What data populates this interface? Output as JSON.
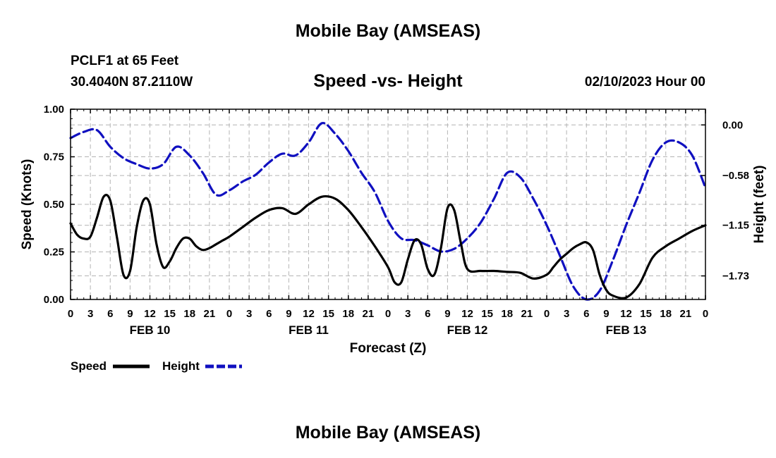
{
  "header": {
    "title": "Mobile Bay (AMSEAS)",
    "station": "PCLF1 at 65 Feet",
    "coords": "30.4040N  87.2110W",
    "datetime": "02/10/2023 Hour 00",
    "footer_title": "Mobile Bay (AMSEAS)"
  },
  "chart_data": {
    "type": "line",
    "title": "Speed -vs- Height",
    "xlabel": "Forecast (Z)",
    "ylabel": "Speed (Knots)",
    "y2label": "Height (feet)",
    "x_range_hours": [
      0,
      96
    ],
    "x_ticks": [
      "0",
      "3",
      "6",
      "9",
      "12",
      "15",
      "18",
      "21",
      "0",
      "3",
      "6",
      "9",
      "12",
      "15",
      "18",
      "21",
      "0",
      "3",
      "6",
      "9",
      "12",
      "15",
      "18",
      "21",
      "0",
      "3",
      "6",
      "9",
      "12",
      "15",
      "18",
      "21",
      "0"
    ],
    "day_labels": [
      {
        "label": "FEB 10",
        "hour": 12
      },
      {
        "label": "FEB 11",
        "hour": 36
      },
      {
        "label": "FEB 12",
        "hour": 60
      },
      {
        "label": "FEB 13",
        "hour": 84
      }
    ],
    "ylim": [
      0,
      1
    ],
    "y_ticks": [
      "0.00",
      "0.25",
      "0.50",
      "0.75",
      "1.00"
    ],
    "y2lim": [
      -2.0,
      0.18
    ],
    "y2_ticks": [
      {
        "label": "0.00",
        "value": 0.0
      },
      {
        "label": "−0.58",
        "value": -0.58
      },
      {
        "label": "−1.15",
        "value": -1.15
      },
      {
        "label": "−1.73",
        "value": -1.73
      }
    ],
    "colors": {
      "speed": "#000000",
      "height": "#1010c0",
      "grid": "#b4b4b4"
    },
    "series": [
      {
        "name": "Speed",
        "axis": "left",
        "x": [
          0,
          1,
          2,
          3,
          4,
          5,
          6,
          7,
          8,
          9,
          10,
          11,
          12,
          13,
          14,
          15,
          16,
          17,
          18,
          19,
          20,
          21,
          22,
          23,
          24,
          26,
          28,
          30,
          32,
          34,
          36,
          38,
          40,
          42,
          44,
          46,
          48,
          49,
          50,
          51,
          52,
          53,
          54,
          55,
          56,
          57,
          58,
          59,
          60,
          62,
          64,
          66,
          68,
          70,
          72,
          73,
          74,
          75,
          76,
          77,
          78,
          79,
          80,
          81,
          82,
          84,
          86,
          88,
          90,
          92,
          94,
          96
        ],
        "values": [
          0.4,
          0.34,
          0.32,
          0.33,
          0.43,
          0.54,
          0.52,
          0.33,
          0.13,
          0.15,
          0.38,
          0.52,
          0.5,
          0.29,
          0.17,
          0.2,
          0.27,
          0.32,
          0.32,
          0.28,
          0.26,
          0.27,
          0.29,
          0.31,
          0.33,
          0.38,
          0.43,
          0.47,
          0.48,
          0.45,
          0.5,
          0.54,
          0.53,
          0.47,
          0.38,
          0.28,
          0.17,
          0.09,
          0.09,
          0.21,
          0.31,
          0.29,
          0.16,
          0.13,
          0.27,
          0.48,
          0.47,
          0.3,
          0.16,
          0.15,
          0.15,
          0.145,
          0.14,
          0.11,
          0.13,
          0.17,
          0.21,
          0.24,
          0.27,
          0.29,
          0.3,
          0.26,
          0.13,
          0.05,
          0.02,
          0.01,
          0.08,
          0.22,
          0.28,
          0.32,
          0.36,
          0.39
        ]
      },
      {
        "name": "Height",
        "axis": "right",
        "x": [
          0,
          2,
          4,
          6,
          8,
          10,
          12,
          14,
          16,
          18,
          20,
          22,
          24,
          26,
          28,
          30,
          32,
          34,
          36,
          38,
          40,
          42,
          44,
          46,
          48,
          50,
          52,
          54,
          56,
          58,
          60,
          62,
          64,
          66,
          68,
          70,
          72,
          74,
          76,
          78,
          80,
          82,
          84,
          86,
          88,
          90,
          92,
          94,
          96
        ],
        "values": [
          -0.15,
          -0.08,
          -0.06,
          -0.25,
          -0.38,
          -0.45,
          -0.5,
          -0.45,
          -0.25,
          -0.35,
          -0.55,
          -0.8,
          -0.75,
          -0.65,
          -0.57,
          -0.43,
          -0.33,
          -0.35,
          -0.2,
          0.02,
          -0.1,
          -0.3,
          -0.55,
          -0.77,
          -1.1,
          -1.3,
          -1.32,
          -1.38,
          -1.45,
          -1.42,
          -1.3,
          -1.12,
          -0.85,
          -0.55,
          -0.6,
          -0.85,
          -1.15,
          -1.5,
          -1.85,
          -2.0,
          -1.9,
          -1.55,
          -1.15,
          -0.78,
          -0.4,
          -0.2,
          -0.2,
          -0.35,
          -0.72
        ]
      }
    ]
  },
  "legend": {
    "speed_label": "Speed",
    "height_label": "Height"
  }
}
